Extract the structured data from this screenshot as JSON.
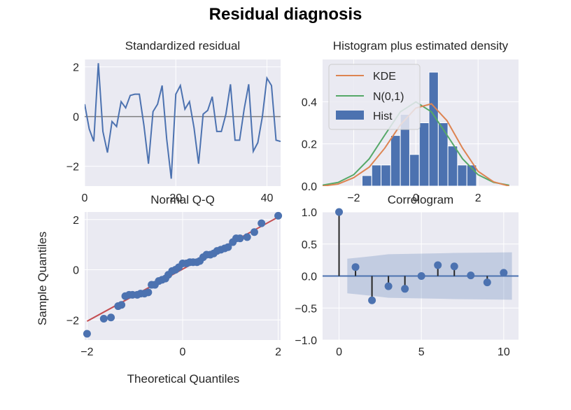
{
  "figure": {
    "suptitle": "Residual diagnosis",
    "colors": {
      "background": "#eaeaf2",
      "grid": "#ffffff",
      "series": "#4c72b0",
      "kde": "#dd8452",
      "normal": "#55a868",
      "reference": "#c44e52",
      "zero_line": "#7f7f7f"
    }
  },
  "chart_data": [
    {
      "id": "standardized_residual",
      "type": "line",
      "title": "Standardized residual",
      "xlabel": "",
      "ylabel": "",
      "xlim": [
        0,
        43
      ],
      "ylim": [
        -2.8,
        2.3
      ],
      "xticks": [
        0,
        20,
        40
      ],
      "yticks": [
        -2,
        0,
        2
      ],
      "grid": true,
      "zero_line": 0,
      "x": [
        0,
        1,
        2,
        3,
        4,
        5,
        6,
        7,
        8,
        9,
        10,
        11,
        12,
        13,
        14,
        15,
        16,
        17,
        18,
        19,
        20,
        21,
        22,
        23,
        24,
        25,
        26,
        27,
        28,
        29,
        30,
        31,
        32,
        33,
        34,
        35,
        36,
        37,
        38,
        39,
        40,
        41,
        42,
        43
      ],
      "values": [
        0.5,
        -0.5,
        -1.0,
        2.15,
        -0.6,
        -1.45,
        -0.2,
        -0.4,
        0.6,
        0.35,
        0.85,
        0.9,
        0.9,
        -0.35,
        -1.9,
        0.2,
        0.5,
        1.25,
        -0.9,
        -2.5,
        0.9,
        1.25,
        0.3,
        0.6,
        -0.45,
        -1.9,
        0.1,
        0.25,
        0.8,
        -0.6,
        -0.6,
        0.1,
        1.3,
        -0.95,
        -0.95,
        0.3,
        1.3,
        -1.4,
        -1.05,
        0.0,
        1.55,
        1.25,
        -0.95,
        -1.0
      ]
    },
    {
      "id": "histogram_density",
      "type": "bar",
      "title": "Histogram plus estimated density",
      "xlabel": "",
      "ylabel": "",
      "xlim": [
        -3.0,
        3.3
      ],
      "ylim": [
        0,
        0.6
      ],
      "xticks": [
        -2,
        0,
        2
      ],
      "yticks": [
        0.0,
        0.2,
        0.4
      ],
      "ytick_labels": [
        "0.0",
        "0.2",
        "0.4"
      ],
      "grid": true,
      "legend": {
        "placement": "upper-left",
        "entries": [
          "KDE",
          "N(0,1)",
          "Hist"
        ]
      },
      "bin_edges": [
        -1.73,
        -1.42,
        -1.12,
        -0.81,
        -0.5,
        -0.2,
        0.11,
        0.42,
        0.72,
        1.03,
        1.34,
        1.64,
        1.95
      ],
      "hist_values": [
        0.05,
        0.1,
        0.1,
        0.24,
        0.34,
        0.15,
        0.3,
        0.54,
        0.3,
        0.19,
        0.1,
        0.1
      ],
      "kde_curve": [
        [
          -3.0,
          0.0
        ],
        [
          -2.5,
          0.01
        ],
        [
          -2.0,
          0.04
        ],
        [
          -1.5,
          0.09
        ],
        [
          -1.0,
          0.18
        ],
        [
          -0.5,
          0.29
        ],
        [
          0.0,
          0.37
        ],
        [
          0.5,
          0.39
        ],
        [
          1.0,
          0.31
        ],
        [
          1.5,
          0.18
        ],
        [
          2.0,
          0.07
        ],
        [
          2.5,
          0.02
        ],
        [
          3.0,
          0.0
        ]
      ],
      "normal_curve": [
        [
          -3.0,
          0.0044
        ],
        [
          -2.5,
          0.0175
        ],
        [
          -2.0,
          0.054
        ],
        [
          -1.5,
          0.1295
        ],
        [
          -1.0,
          0.242
        ],
        [
          -0.5,
          0.352
        ],
        [
          0.0,
          0.399
        ],
        [
          0.5,
          0.352
        ],
        [
          1.0,
          0.242
        ],
        [
          1.5,
          0.1295
        ],
        [
          2.0,
          0.054
        ],
        [
          2.5,
          0.0175
        ],
        [
          3.0,
          0.0044
        ]
      ]
    },
    {
      "id": "normal_qq",
      "type": "scatter",
      "title": "Normal Q-Q",
      "xlabel": "Theoretical Quantiles",
      "ylabel": "Sample Quantiles",
      "xlim": [
        -2.05,
        2.05
      ],
      "ylim": [
        -2.8,
        2.3
      ],
      "xticks": [
        -2,
        0,
        2
      ],
      "yticks": [
        -2,
        0,
        2
      ],
      "grid": true,
      "reference_line": [
        [
          -2.0,
          -2.05
        ],
        [
          2.05,
          2.15
        ]
      ],
      "x": [
        -2.0,
        -1.65,
        -1.5,
        -1.35,
        -1.28,
        -1.2,
        -1.12,
        -1.05,
        -0.95,
        -0.88,
        -0.8,
        -0.72,
        -0.65,
        -0.58,
        -0.5,
        -0.43,
        -0.36,
        -0.3,
        -0.22,
        -0.15,
        -0.08,
        0.0,
        0.08,
        0.15,
        0.22,
        0.3,
        0.36,
        0.43,
        0.5,
        0.58,
        0.65,
        0.72,
        0.8,
        0.88,
        0.95,
        1.05,
        1.12,
        1.2,
        1.35,
        1.5,
        1.65,
        2.0
      ],
      "values": [
        -2.55,
        -1.95,
        -1.9,
        -1.45,
        -1.4,
        -1.05,
        -1.0,
        -1.0,
        -1.0,
        -0.95,
        -0.95,
        -0.9,
        -0.6,
        -0.6,
        -0.45,
        -0.4,
        -0.35,
        -0.2,
        -0.05,
        0.0,
        0.1,
        0.25,
        0.25,
        0.3,
        0.3,
        0.3,
        0.35,
        0.5,
        0.6,
        0.6,
        0.65,
        0.75,
        0.8,
        0.85,
        0.9,
        1.1,
        1.25,
        1.25,
        1.3,
        1.5,
        1.85,
        2.15
      ]
    },
    {
      "id": "correlogram",
      "type": "scatter",
      "title": "Correlogram",
      "xlabel": "",
      "ylabel": "",
      "xlim": [
        -1.0,
        10.9
      ],
      "ylim": [
        -1.0,
        1.0
      ],
      "xticks": [
        0,
        5,
        10
      ],
      "yticks": [
        -1.0,
        -0.5,
        0.0,
        0.5,
        1.0
      ],
      "ytick_labels": [
        "−1.0",
        "−0.5",
        "0.0",
        "0.5",
        "1.0"
      ],
      "grid": true,
      "lags": [
        0,
        1,
        2,
        3,
        4,
        5,
        6,
        7,
        8,
        9,
        10
      ],
      "values": [
        1.0,
        0.14,
        -0.38,
        -0.16,
        -0.2,
        0.0,
        0.17,
        0.15,
        0.01,
        -0.1,
        0.05
      ],
      "confidence_band": [
        [
          0.5,
          0.27
        ],
        [
          2.0,
          0.31
        ],
        [
          3.0,
          0.34
        ],
        [
          5.0,
          0.35
        ],
        [
          7.0,
          0.36
        ],
        [
          10.5,
          0.37
        ]
      ]
    }
  ]
}
